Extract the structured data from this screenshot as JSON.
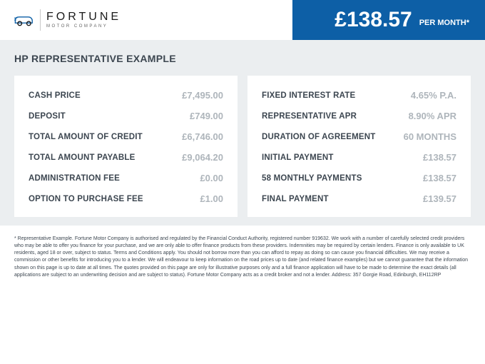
{
  "logo": {
    "main": "FORTUNE",
    "sub": "MOTOR COMPANY"
  },
  "header": {
    "price": "£138.57",
    "unit": "PER MONTH*"
  },
  "section_title": "HP REPRESENTATIVE EXAMPLE",
  "left": [
    {
      "label": "CASH PRICE",
      "value": "£7,495.00"
    },
    {
      "label": "DEPOSIT",
      "value": "£749.00"
    },
    {
      "label": "TOTAL AMOUNT OF CREDIT",
      "value": "£6,746.00"
    },
    {
      "label": "TOTAL AMOUNT PAYABLE",
      "value": "£9,064.20"
    },
    {
      "label": "ADMINISTRATION FEE",
      "value": "£0.00"
    },
    {
      "label": "OPTION TO PURCHASE FEE",
      "value": "£1.00"
    }
  ],
  "right": [
    {
      "label": "FIXED INTEREST RATE",
      "value": "4.65% P.A."
    },
    {
      "label": "REPRESENTATIVE APR",
      "value": "8.90% APR"
    },
    {
      "label": "DURATION OF AGREEMENT",
      "value": "60 MONTHS"
    },
    {
      "label": "INITIAL PAYMENT",
      "value": "£138.57"
    },
    {
      "label": "58 MONTHLY PAYMENTS",
      "value": "£138.57"
    },
    {
      "label": "FINAL PAYMENT",
      "value": "£139.57"
    }
  ],
  "fineprint": "* Representative Example. Fortune Motor Company is authorised and regulated by the Financial Conduct Authority, registered number 919632. We work with a number of carefully selected credit providers who may be able to offer you finance for your purchase, and we are only able to offer finance products from these providers. Indemnities may be required by certain lenders. Finance is only available to UK residents, aged 18 or over, subject to status. Terms and Conditions apply. You should not borrow more than you can afford to repay as doing so can cause you financial difficulties. We may receive a commission or other benefits for introducing you to a lender. We will endeavour to keep information on the road prices up to date (and related finance examples) but we cannot guarantee that the information shown on this page is up to date at all times. The quotes provided on this page are only for illustrative purposes only and a full finance application will have to be made to determine the exact details (all applications are subject to an underwriting decision and are subject to status). Fortune Motor Company acts as a credit broker and not a lender. Address: 357 Gorgie Road, Edinburgh, EH112RP",
  "colors": {
    "header_bg": "#0d5fa6",
    "content_bg": "#ebeef0",
    "card_bg": "#ffffff",
    "label_color": "#3c4650",
    "value_color": "#aeb5bb",
    "logo_accent": "#0d5fa6"
  }
}
